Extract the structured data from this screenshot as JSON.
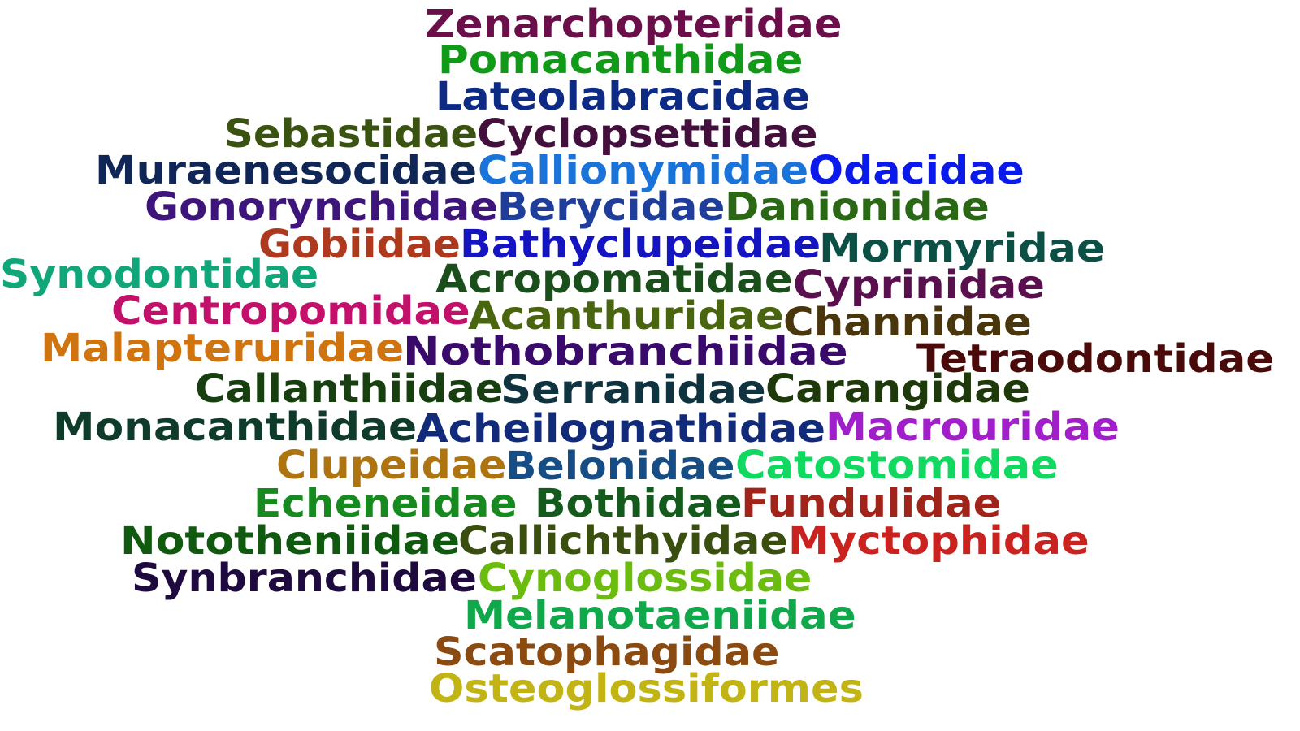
{
  "words": [
    {
      "text": "Zenarchopteridae",
      "color": "#6b0f4a"
    },
    {
      "text": "Pomacanthidae",
      "color": "#109a17"
    },
    {
      "text": "Lateolabracidae",
      "color": "#0d2a84"
    },
    {
      "text": "Sebastidae",
      "color": "#3b5310"
    },
    {
      "text": "Cyclopsettidae",
      "color": "#43103e"
    },
    {
      "text": "Muraenesocidae",
      "color": "#0f2657"
    },
    {
      "text": "Callionymidae",
      "color": "#1a73d8"
    },
    {
      "text": "Odacidae",
      "color": "#0a1aea"
    },
    {
      "text": "Gonorynchidae",
      "color": "#3e157a"
    },
    {
      "text": "Berycidae",
      "color": "#1f3d9b"
    },
    {
      "text": "Danionidae",
      "color": "#2b6816"
    },
    {
      "text": "Gobiidae",
      "color": "#ad3a1e"
    },
    {
      "text": "Bathyclupeidae",
      "color": "#1414c0"
    },
    {
      "text": "Mormyridae",
      "color": "#0b4f45"
    },
    {
      "text": "Synodontidae",
      "color": "#10a679"
    },
    {
      "text": "Acropomatidae",
      "color": "#1a4e1a"
    },
    {
      "text": "Cyprinidae",
      "color": "#5a0f4e"
    },
    {
      "text": "Centropomidae",
      "color": "#c3106b"
    },
    {
      "text": "Acanthuridae",
      "color": "#4a6510"
    },
    {
      "text": "Channidae",
      "color": "#4a360c"
    },
    {
      "text": "Malapteruridae",
      "color": "#d0740f"
    },
    {
      "text": "Nothobranchiidae",
      "color": "#3a0a6a"
    },
    {
      "text": "Tetraodontidae",
      "color": "#4a0a0a"
    },
    {
      "text": "Callanthiidae",
      "color": "#173f0f"
    },
    {
      "text": "Serranidae",
      "color": "#0f3440"
    },
    {
      "text": "Carangidae",
      "color": "#1f3a0a"
    },
    {
      "text": "Monacanthidae",
      "color": "#0f3b2a"
    },
    {
      "text": "Acheilognathidae",
      "color": "#122a7a"
    },
    {
      "text": "Macrouridae",
      "color": "#a01fc8"
    },
    {
      "text": "Clupeidae",
      "color": "#ad7410"
    },
    {
      "text": "Belonidae",
      "color": "#154d84"
    },
    {
      "text": "Catostomidae",
      "color": "#10d860"
    },
    {
      "text": "Echeneidae",
      "color": "#178a1f"
    },
    {
      "text": "Bothidae",
      "color": "#145a1c"
    },
    {
      "text": "Fundulidae",
      "color": "#a0241a"
    },
    {
      "text": "Nototheniidae",
      "color": "#0f5a0f"
    },
    {
      "text": "Callichthyidae",
      "color": "#3a4f0f"
    },
    {
      "text": "Myctophidae",
      "color": "#c9221f"
    },
    {
      "text": "Synbranchidae",
      "color": "#1f0a40"
    },
    {
      "text": "Cynoglossidae",
      "color": "#6cbc10"
    },
    {
      "text": "Melanotaeniidae",
      "color": "#10a84a"
    },
    {
      "text": "Scatophagidae",
      "color": "#8a4a10"
    },
    {
      "text": "Osteoglossiformes",
      "color": "#c2b414"
    }
  ]
}
